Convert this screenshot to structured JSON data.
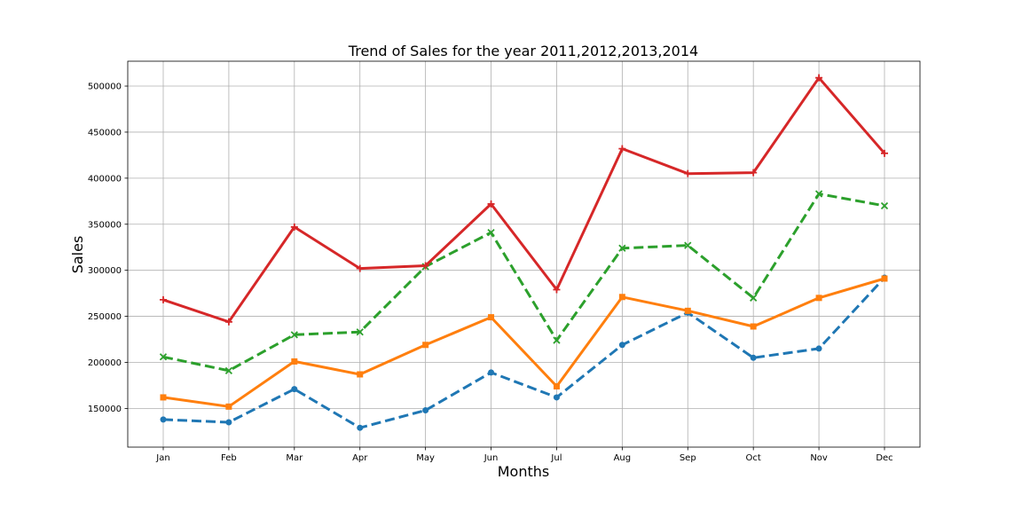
{
  "chart_data": {
    "type": "line",
    "title": "Trend of Sales for the year 2011,2012,2013,2014",
    "xlabel": "Months",
    "ylabel": "Sales",
    "categories": [
      "Jan",
      "Feb",
      "Mar",
      "Apr",
      "May",
      "Jun",
      "Jul",
      "Aug",
      "Sep",
      "Oct",
      "Nov",
      "Dec"
    ],
    "ylim": [
      108000,
      527000
    ],
    "yticks": [
      150000,
      200000,
      250000,
      300000,
      350000,
      400000,
      450000,
      500000
    ],
    "grid": true,
    "series": [
      {
        "color": "#1f77b4",
        "line_style": "dashed",
        "marker": "circle",
        "values": [
          138000,
          135000,
          171000,
          129000,
          148000,
          189000,
          162000,
          219000,
          254000,
          205000,
          215000,
          292000
        ]
      },
      {
        "color": "#ff7f0e",
        "line_style": "solid",
        "marker": "square",
        "values": [
          162000,
          152000,
          201000,
          187000,
          219000,
          249000,
          174000,
          271000,
          256000,
          239000,
          270000,
          291000
        ]
      },
      {
        "color": "#2ca02c",
        "line_style": "dashed",
        "marker": "x",
        "values": [
          206000,
          191000,
          230000,
          233000,
          304000,
          341000,
          224000,
          324000,
          327000,
          270000,
          383000,
          370000
        ]
      },
      {
        "color": "#d62728",
        "line_style": "solid",
        "marker": "plus",
        "values": [
          268000,
          244000,
          347000,
          302000,
          305000,
          372000,
          279000,
          432000,
          405000,
          406000,
          509000,
          427000
        ]
      }
    ]
  }
}
